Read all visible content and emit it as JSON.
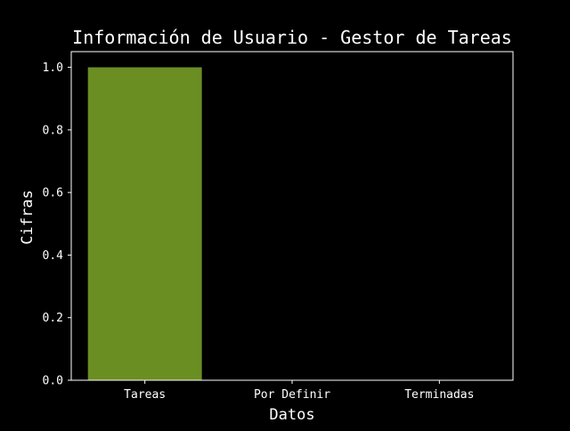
{
  "chart_data": {
    "type": "bar",
    "title": "Información de Usuario - Gestor de Tareas",
    "xlabel": "Datos",
    "ylabel": "Cifras",
    "categories": [
      "Tareas",
      "Por Definir",
      "Terminadas"
    ],
    "values": [
      1,
      0,
      0
    ],
    "ylim": [
      0,
      1.05
    ],
    "yticks": [
      "0.0",
      "0.2",
      "0.4",
      "0.6",
      "0.8",
      "1.0"
    ],
    "grid": false,
    "colors": {
      "background": "#000000",
      "bar": "#6b8e23",
      "axis": "#ffffff",
      "text": "#ffffff"
    }
  }
}
